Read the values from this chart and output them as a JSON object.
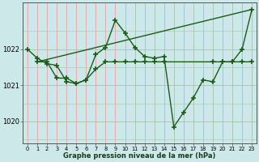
{
  "title": "Graphe pression niveau de la mer (hPa)",
  "bg_color": "#cce8e8",
  "grid_color_v": "#f0a0a0",
  "grid_color_h": "#a0c8a0",
  "line_color": "#1a5c1a",
  "marker": "+",
  "markersize": 5,
  "linewidth": 1.0,
  "xlim": [
    -0.5,
    23.5
  ],
  "ylim": [
    1019.4,
    1023.3
  ],
  "yticks": [
    1020,
    1021,
    1022
  ],
  "xticks": [
    0,
    1,
    2,
    3,
    4,
    5,
    6,
    7,
    8,
    9,
    10,
    11,
    12,
    13,
    14,
    15,
    16,
    17,
    18,
    19,
    20,
    21,
    22,
    23
  ],
  "series": [
    {
      "x": [
        0,
        1,
        2,
        3,
        4,
        5,
        6,
        7,
        8,
        9,
        10,
        11,
        12,
        13,
        14,
        15,
        16,
        17,
        18,
        19,
        20,
        21,
        22,
        23
      ],
      "y": [
        1022.0,
        1021.75,
        1021.6,
        1021.55,
        1021.1,
        1021.05,
        1021.15,
        1021.85,
        1022.05,
        1022.8,
        1022.45,
        1022.05,
        1021.8,
        1021.75,
        1021.8,
        1019.85,
        1020.25,
        1020.65,
        1021.15,
        1021.1,
        1021.65,
        1021.65,
        1022.0,
        1023.1
      ]
    },
    {
      "x": [
        1,
        2,
        3,
        4,
        5,
        6,
        7,
        8,
        9,
        10,
        11,
        12,
        13,
        14,
        19,
        20,
        21,
        22,
        23
      ],
      "y": [
        1021.65,
        1021.65,
        1021.2,
        1021.2,
        1021.05,
        1021.15,
        1021.45,
        1021.65,
        1021.65,
        1021.65,
        1021.65,
        1021.65,
        1021.65,
        1021.65,
        1021.65,
        1021.65,
        1021.65,
        1021.65,
        1021.65
      ]
    },
    {
      "x": [
        1,
        5,
        10,
        14,
        19,
        23
      ],
      "y": [
        1021.65,
        1021.65,
        1021.65,
        1021.65,
        1021.65,
        1023.1
      ]
    }
  ]
}
